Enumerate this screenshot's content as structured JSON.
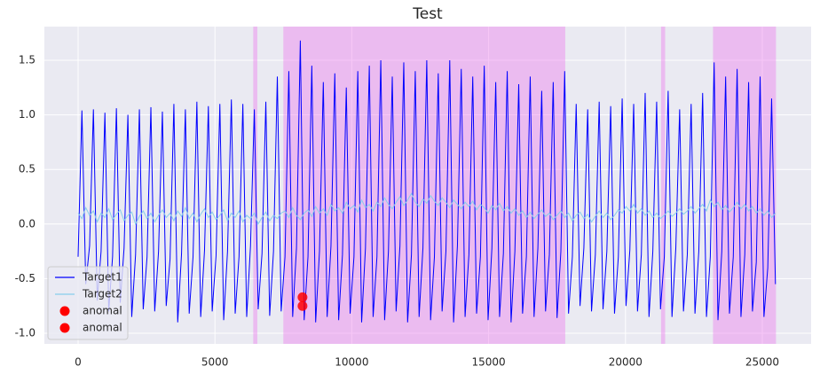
{
  "chart_data": {
    "type": "line",
    "title": "Test",
    "xlim": [
      -1232,
      26784
    ],
    "ylim": [
      -1.097,
      1.808
    ],
    "xticks": [
      0,
      5000,
      10000,
      15000,
      20000,
      25000
    ],
    "yticks": [
      {
        "value": -1.0,
        "label": "-1.0"
      },
      {
        "value": -0.5,
        "label": "-0.5"
      },
      {
        "value": 0.0,
        "label": "0.0"
      },
      {
        "value": 0.5,
        "label": "0.5"
      },
      {
        "value": 1.0,
        "label": "1.0"
      },
      {
        "value": 1.5,
        "label": "1.5"
      }
    ],
    "grid": true,
    "legend": "lower left",
    "spans": [
      [
        6400,
        6550
      ],
      [
        7500,
        17800
      ],
      [
        21300,
        21450
      ],
      [
        23200,
        25500
      ]
    ],
    "span_color": "#ee82ee",
    "x": [
      0,
      140,
      280,
      420,
      560,
      700,
      840,
      980,
      1120,
      1260,
      1400,
      1540,
      1680,
      1820,
      1960,
      2100,
      2240,
      2380,
      2520,
      2660,
      2800,
      2940,
      3080,
      3220,
      3360,
      3500,
      3640,
      3780,
      3920,
      4060,
      4200,
      4340,
      4480,
      4620,
      4760,
      4900,
      5040,
      5180,
      5320,
      5460,
      5600,
      5740,
      5880,
      6020,
      6160,
      6300,
      6440,
      6580,
      6720,
      6860,
      7000,
      7140,
      7280,
      7420,
      7560,
      7700,
      7840,
      7980,
      8120,
      8260,
      8400,
      8540,
      8680,
      8820,
      8960,
      9100,
      9240,
      9380,
      9520,
      9660,
      9800,
      9940,
      10080,
      10220,
      10360,
      10500,
      10640,
      10780,
      10920,
      11060,
      11200,
      11340,
      11480,
      11620,
      11760,
      11900,
      12040,
      12180,
      12320,
      12460,
      12600,
      12740,
      12880,
      13020,
      13160,
      13300,
      13440,
      13580,
      13720,
      13860,
      14000,
      14140,
      14280,
      14420,
      14560,
      14700,
      14840,
      14980,
      15120,
      15260,
      15400,
      15540,
      15680,
      15820,
      15960,
      16100,
      16240,
      16380,
      16520,
      16660,
      16800,
      16940,
      17080,
      17220,
      17360,
      17500,
      17640,
      17780,
      17920,
      18060,
      18200,
      18340,
      18480,
      18620,
      18760,
      18900,
      19040,
      19180,
      19320,
      19460,
      19600,
      19740,
      19880,
      20020,
      20160,
      20300,
      20440,
      20580,
      20720,
      20860,
      21000,
      21140,
      21280,
      21420,
      21560,
      21700,
      21840,
      21980,
      22120,
      22260,
      22400,
      22540,
      22680,
      22820,
      22960,
      23100,
      23240,
      23380,
      23520,
      23660,
      23800,
      23940,
      24080,
      24220,
      24360,
      24500,
      24640,
      24780,
      24920,
      25060,
      25200,
      25340,
      25480
    ],
    "series": [
      {
        "name": "Target1",
        "color": "#0000ff",
        "values": [
          -0.3,
          1.04,
          -0.55,
          -0.2,
          1.05,
          -0.7,
          -0.25,
          1.02,
          -0.8,
          -0.3,
          1.06,
          -0.72,
          -0.22,
          1.0,
          -0.85,
          -0.28,
          1.05,
          -0.78,
          -0.3,
          1.07,
          -0.8,
          -0.25,
          1.03,
          -0.75,
          -0.32,
          1.1,
          -0.9,
          -0.27,
          1.05,
          -0.82,
          -0.3,
          1.12,
          -0.85,
          -0.24,
          1.08,
          -0.8,
          -0.29,
          1.1,
          -0.88,
          -0.25,
          1.14,
          -0.82,
          -0.3,
          1.1,
          -0.85,
          -0.2,
          1.05,
          -0.78,
          -0.27,
          1.12,
          -0.84,
          -0.25,
          1.35,
          -0.8,
          -0.3,
          1.4,
          -0.85,
          -0.22,
          1.68,
          -0.88,
          -0.3,
          1.45,
          -0.9,
          -0.25,
          1.3,
          -0.85,
          -0.2,
          1.38,
          -0.88,
          -0.28,
          1.25,
          -0.82,
          -0.3,
          1.4,
          -0.9,
          -0.22,
          1.45,
          -0.85,
          -0.3,
          1.5,
          -0.88,
          -0.25,
          1.35,
          -0.8,
          -0.2,
          1.48,
          -0.9,
          -0.28,
          1.4,
          -0.85,
          -0.22,
          1.5,
          -0.88,
          -0.3,
          1.38,
          -0.8,
          -0.25,
          1.5,
          -0.9,
          -0.2,
          1.42,
          -0.85,
          -0.28,
          1.35,
          -0.82,
          -0.3,
          1.45,
          -0.88,
          -0.22,
          1.3,
          -0.85,
          -0.27,
          1.4,
          -0.9,
          -0.25,
          1.28,
          -0.82,
          -0.3,
          1.35,
          -0.85,
          -0.22,
          1.22,
          -0.8,
          -0.28,
          1.3,
          -0.86,
          -0.25,
          1.4,
          -0.82,
          -0.3,
          1.1,
          -0.75,
          -0.22,
          1.05,
          -0.8,
          -0.28,
          1.12,
          -0.78,
          -0.25,
          1.08,
          -0.82,
          -0.3,
          1.15,
          -0.75,
          -0.24,
          1.1,
          -0.8,
          -0.28,
          1.2,
          -0.85,
          -0.25,
          1.12,
          -0.78,
          -0.3,
          1.22,
          -0.85,
          -0.22,
          1.05,
          -0.8,
          -0.28,
          1.1,
          -0.82,
          -0.25,
          1.2,
          -0.85,
          -0.3,
          1.48,
          -0.88,
          -0.25,
          1.35,
          -0.82,
          -0.3,
          1.42,
          -0.85,
          -0.28,
          1.3,
          -0.8,
          -0.35,
          1.35,
          -0.85,
          -0.4,
          1.15,
          -0.55
        ]
      },
      {
        "name": "Target2",
        "color": "#87ceeb",
        "values": [
          0.1,
          0.05,
          0.15,
          0.08,
          0.12,
          0.02,
          0.1,
          0.06,
          0.14,
          0.04,
          0.09,
          0.13,
          0.03,
          0.08,
          0.11,
          0.0,
          0.07,
          0.12,
          0.05,
          0.1,
          0.02,
          0.08,
          0.13,
          0.06,
          0.1,
          0.03,
          0.12,
          0.07,
          0.15,
          0.05,
          0.1,
          0.02,
          0.09,
          0.14,
          0.06,
          0.11,
          0.04,
          0.08,
          0.13,
          0.03,
          0.1,
          0.06,
          0.12,
          0.02,
          0.08,
          0.05,
          0.1,
          0.0,
          0.06,
          0.11,
          0.03,
          0.08,
          0.05,
          0.1,
          0.12,
          0.06,
          0.15,
          0.08,
          0.04,
          0.1,
          0.13,
          0.07,
          0.16,
          0.1,
          0.14,
          0.08,
          0.18,
          0.12,
          0.15,
          0.1,
          0.2,
          0.14,
          0.17,
          0.11,
          0.22,
          0.15,
          0.18,
          0.12,
          0.2,
          0.16,
          0.24,
          0.18,
          0.14,
          0.2,
          0.25,
          0.17,
          0.22,
          0.28,
          0.2,
          0.16,
          0.23,
          0.19,
          0.26,
          0.21,
          0.17,
          0.24,
          0.2,
          0.15,
          0.22,
          0.18,
          0.14,
          0.2,
          0.16,
          0.21,
          0.13,
          0.18,
          0.15,
          0.1,
          0.17,
          0.13,
          0.19,
          0.12,
          0.16,
          0.1,
          0.14,
          0.08,
          0.12,
          0.06,
          0.11,
          0.05,
          0.09,
          0.13,
          0.07,
          0.1,
          0.04,
          0.08,
          0.12,
          0.06,
          0.1,
          0.03,
          0.08,
          0.11,
          0.05,
          0.09,
          0.02,
          0.07,
          0.12,
          0.06,
          0.1,
          0.04,
          0.08,
          0.13,
          0.1,
          0.16,
          0.12,
          0.18,
          0.1,
          0.14,
          0.08,
          0.12,
          0.06,
          0.1,
          0.05,
          0.08,
          0.12,
          0.07,
          0.1,
          0.14,
          0.09,
          0.12,
          0.16,
          0.1,
          0.14,
          0.18,
          0.12,
          0.22,
          0.16,
          0.2,
          0.13,
          0.17,
          0.11,
          0.15,
          0.2,
          0.14,
          0.18,
          0.12,
          0.16,
          0.1,
          0.14,
          0.08,
          0.12,
          0.06,
          0.1
        ]
      }
    ],
    "scatter": [
      {
        "name": "anomal",
        "color": "#ff0000",
        "x": [
          8200
        ],
        "values": [
          -0.67
        ]
      },
      {
        "name": "anomal",
        "color": "#ff0000",
        "x": [
          8200
        ],
        "values": [
          -0.75
        ]
      }
    ]
  }
}
